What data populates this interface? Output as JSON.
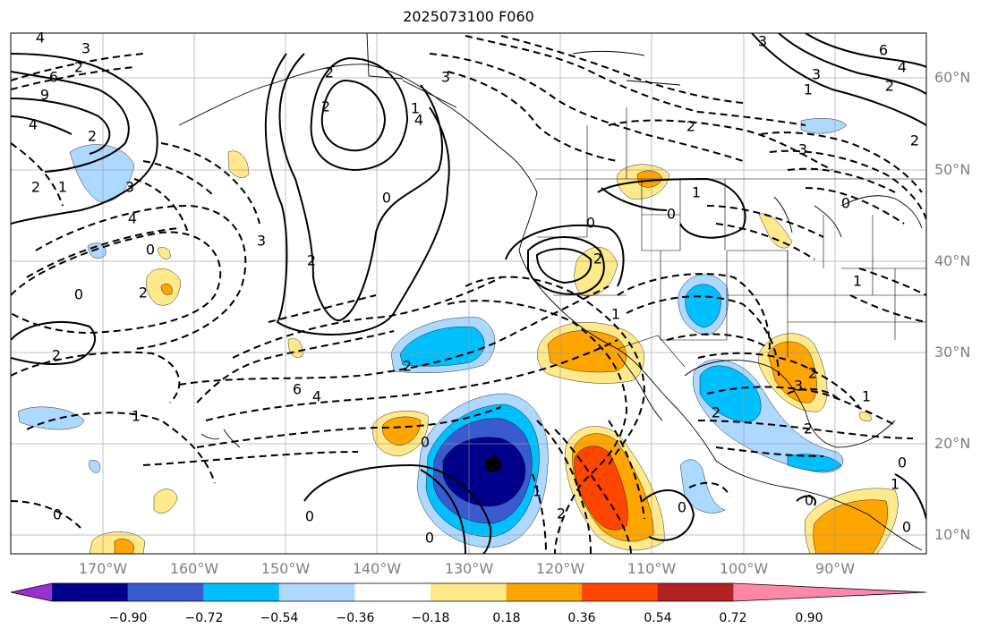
{
  "title": "2025073100 F060",
  "lat_labels": [
    "60°N",
    "50°N",
    "40°N",
    "30°N",
    "20°N",
    "10°N"
  ],
  "lon_labels": [
    "170°W",
    "160°W",
    "150°W",
    "140°W",
    "130°W",
    "120°W",
    "110°W",
    "100°W",
    "90°W"
  ],
  "colorbar": {
    "colors": [
      "#9932cc",
      "#00008b",
      "#3a5bd0",
      "#00bfff",
      "#add8ff",
      "#ffffff",
      "#ffe98a",
      "#ffa500",
      "#ff4500",
      "#b22222",
      "#ff88aa"
    ],
    "tick_labels": [
      "−0.90",
      "−0.72",
      "−0.54",
      "−0.36",
      "−0.18",
      "0.18",
      "0.36",
      "0.54",
      "0.72",
      "0.90"
    ]
  },
  "contour_labels": [
    "4",
    "3",
    "2",
    "6",
    "9",
    "4",
    "2",
    "2",
    "1",
    "3",
    "4",
    "0",
    "2",
    "0",
    "2",
    "0",
    "1",
    "6",
    "4",
    "3",
    "2",
    "2",
    "1",
    "0",
    "2",
    "4",
    "3",
    "0",
    "2",
    "0",
    "1",
    "0",
    "0",
    "2",
    "0",
    "1",
    "2",
    "1",
    "0",
    "2",
    "3",
    "6",
    "4",
    "3",
    "3",
    "2",
    "2",
    "0",
    "2",
    "1",
    "1",
    "0",
    "0",
    "1",
    "0",
    "1",
    "2",
    "3",
    "2"
  ]
}
